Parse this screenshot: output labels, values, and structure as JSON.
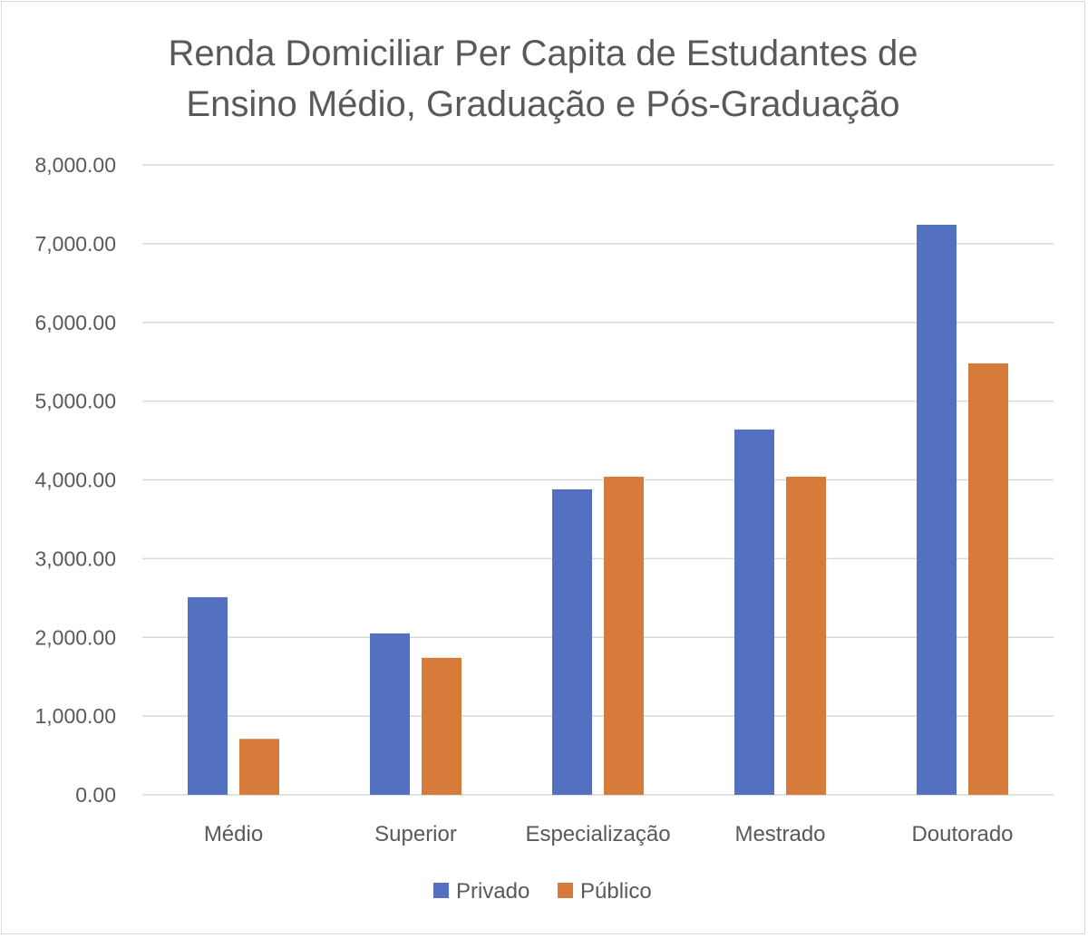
{
  "chart_data": {
    "type": "bar",
    "title_lines": [
      "Renda Domiciliar Per Capita de Estudantes de",
      "Ensino Médio, Graduação e Pós-Graduação"
    ],
    "categories": [
      "Médio",
      "Superior",
      "Especialização",
      "Mestrado",
      "Doutorado"
    ],
    "series": [
      {
        "name": "Privado",
        "color": "#5470c1",
        "values": [
          2510,
          2050,
          3880,
          4640,
          7240
        ]
      },
      {
        "name": "Público",
        "color": "#d67b3a",
        "values": [
          710,
          1740,
          4040,
          4040,
          5480
        ]
      }
    ],
    "ylim": [
      0,
      8000
    ],
    "yticks": [
      "0.00",
      "1,000.00",
      "2,000.00",
      "3,000.00",
      "4,000.00",
      "5,000.00",
      "6,000.00",
      "7,000.00",
      "8,000.00"
    ],
    "grid": true,
    "legend_position": "bottom"
  }
}
